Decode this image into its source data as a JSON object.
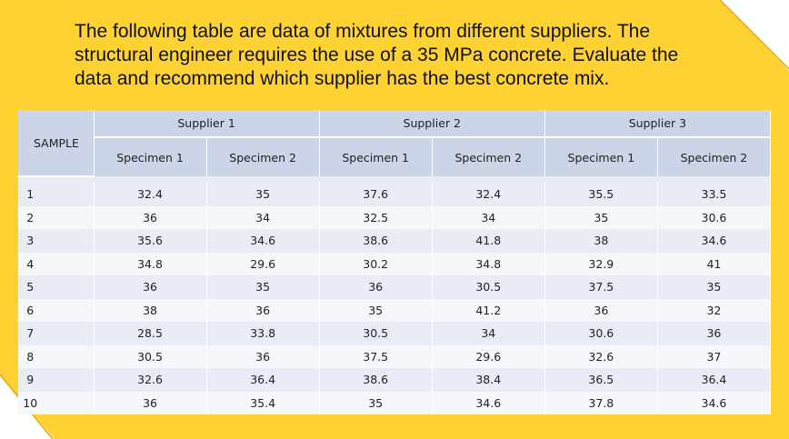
{
  "question": {
    "line1": "The following table are data of mixtures from different suppliers. The",
    "line2": "structural engineer requires the use of a 35 MPa concrete. Evaluate the",
    "line3": "data and recommend which supplier has the best concrete mix."
  },
  "table": {
    "sample_header": "SAMPLE",
    "suppliers": [
      "Supplier 1",
      "Supplier 2",
      "Supplier 3"
    ],
    "specimens": [
      "Specimen 1",
      "Specimen 2",
      "Specimen 1",
      "Specimen 2",
      "Specimen 1",
      "Specimen 2"
    ],
    "rows": [
      {
        "sample": "1",
        "values": [
          "32.4",
          "35",
          "37.6",
          "32.4",
          "35.5",
          "33.5"
        ]
      },
      {
        "sample": "2",
        "values": [
          "36",
          "34",
          "32.5",
          "34",
          "35",
          "30.6"
        ]
      },
      {
        "sample": "3",
        "values": [
          "35.6",
          "34.6",
          "38.6",
          "41.8",
          "38",
          "34.6"
        ]
      },
      {
        "sample": "4",
        "values": [
          "34.8",
          "29.6",
          "30.2",
          "34.8",
          "32.9",
          "41"
        ]
      },
      {
        "sample": "5",
        "values": [
          "36",
          "35",
          "36",
          "30.5",
          "37.5",
          "35"
        ]
      },
      {
        "sample": "6",
        "values": [
          "38",
          "36",
          "35",
          "41.2",
          "36",
          "32"
        ]
      },
      {
        "sample": "7",
        "values": [
          "28.5",
          "33.8",
          "30.5",
          "34",
          "30.6",
          "36"
        ]
      },
      {
        "sample": "8",
        "values": [
          "30.5",
          "36",
          "37.5",
          "29.6",
          "32.6",
          "37"
        ]
      },
      {
        "sample": "9",
        "values": [
          "32.6",
          "36.4",
          "38.6",
          "38.4",
          "36.5",
          "36.4"
        ]
      },
      {
        "sample": "10",
        "values": [
          "36",
          "35.4",
          "35",
          "34.6",
          "37.8",
          "34.6"
        ]
      }
    ]
  },
  "colors": {
    "accent_yellow": "#ffd234",
    "header_fill": "#ccd4e7",
    "row_fill_a": "#e8ecf4",
    "row_fill_b": "#f5f7fb"
  }
}
